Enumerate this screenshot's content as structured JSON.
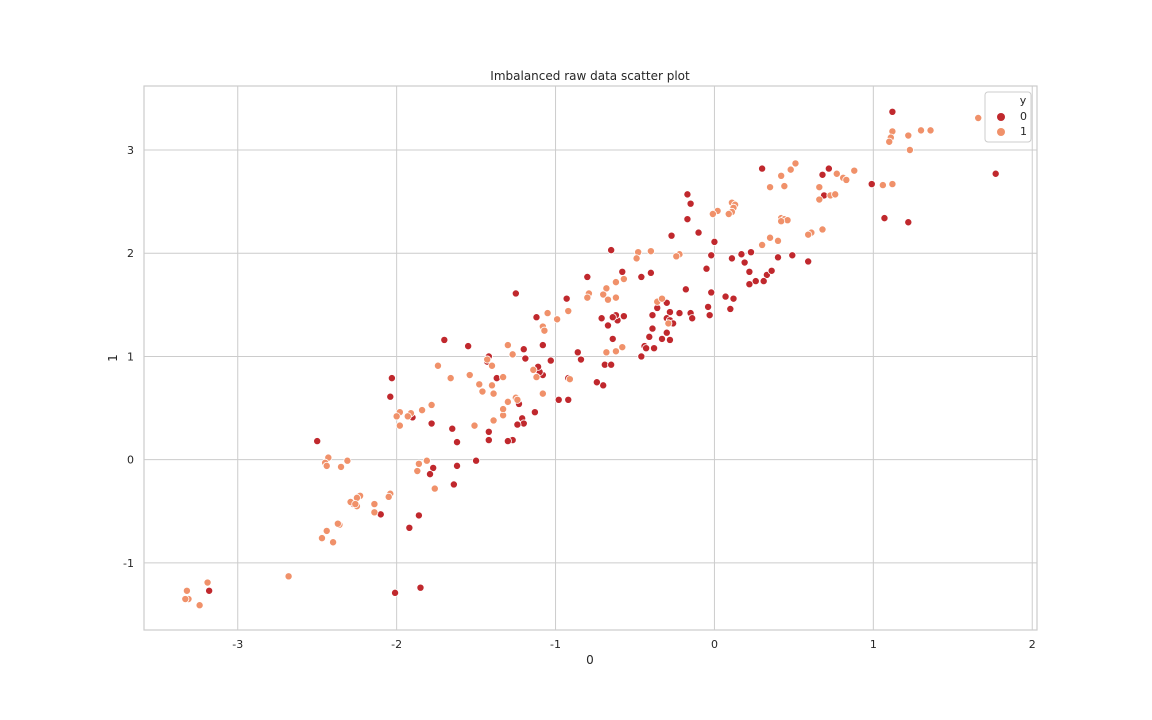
{
  "chart_data": {
    "type": "scatter",
    "title": "Imbalanced raw data scatter plot",
    "xlabel": "0",
    "ylabel": "1",
    "xlim": [
      -3.59,
      2.03
    ],
    "ylim": [
      -1.65,
      3.62
    ],
    "xticks": [
      -3,
      -2,
      -1,
      0,
      1,
      2
    ],
    "yticks": [
      -1,
      0,
      1,
      2,
      3
    ],
    "grid": true,
    "legend": {
      "title": "y",
      "position": "upper right",
      "entries": [
        "0",
        "1"
      ]
    },
    "colors": {
      "0": "#c0282d",
      "1": "#f0916a"
    },
    "series": [
      {
        "name": "0",
        "points": [
          [
            1.12,
            3.37
          ],
          [
            1.77,
            2.77
          ],
          [
            0.3,
            2.82
          ],
          [
            0.72,
            2.82
          ],
          [
            0.68,
            2.76
          ],
          [
            0.69,
            2.56
          ],
          [
            1.07,
            2.34
          ],
          [
            1.22,
            2.3
          ],
          [
            0.99,
            2.67
          ],
          [
            -0.17,
            2.57
          ],
          [
            -0.15,
            2.48
          ],
          [
            -0.17,
            2.33
          ],
          [
            -0.27,
            2.17
          ],
          [
            -0.1,
            2.2
          ],
          [
            0.0,
            2.11
          ],
          [
            -0.02,
            1.98
          ],
          [
            -0.05,
            1.85
          ],
          [
            0.17,
            1.99
          ],
          [
            0.23,
            2.01
          ],
          [
            0.19,
            1.91
          ],
          [
            0.11,
            1.95
          ],
          [
            0.22,
            1.82
          ],
          [
            0.33,
            1.79
          ],
          [
            0.36,
            1.83
          ],
          [
            0.4,
            1.96
          ],
          [
            0.49,
            1.98
          ],
          [
            0.59,
            1.92
          ],
          [
            0.22,
            1.7
          ],
          [
            0.26,
            1.73
          ],
          [
            0.31,
            1.73
          ],
          [
            0.07,
            1.58
          ],
          [
            0.12,
            1.56
          ],
          [
            -0.02,
            1.62
          ],
          [
            0.1,
            1.46
          ],
          [
            -0.04,
            1.48
          ],
          [
            -0.03,
            1.4
          ],
          [
            -0.18,
            1.65
          ],
          [
            -0.28,
            1.43
          ],
          [
            -0.22,
            1.42
          ],
          [
            -0.15,
            1.42
          ],
          [
            -0.14,
            1.37
          ],
          [
            -0.3,
            1.52
          ],
          [
            -0.3,
            1.37
          ],
          [
            -0.36,
            1.47
          ],
          [
            -0.39,
            1.4
          ],
          [
            -0.28,
            1.35
          ],
          [
            -0.26,
            1.32
          ],
          [
            -0.3,
            1.23
          ],
          [
            -0.33,
            1.17
          ],
          [
            -0.28,
            1.16
          ],
          [
            -0.39,
            1.27
          ],
          [
            -0.41,
            1.19
          ],
          [
            -0.44,
            1.1
          ],
          [
            -0.38,
            1.08
          ],
          [
            -0.46,
            1.0
          ],
          [
            -0.4,
            1.81
          ],
          [
            -0.58,
            1.82
          ],
          [
            -0.46,
            1.77
          ],
          [
            -0.65,
            2.03
          ],
          [
            -0.57,
            1.39
          ],
          [
            -0.61,
            1.35
          ],
          [
            -0.62,
            1.4
          ],
          [
            -0.64,
            1.38
          ],
          [
            -0.71,
            1.37
          ],
          [
            -0.67,
            1.3
          ],
          [
            -0.64,
            1.17
          ],
          [
            -0.69,
            0.92
          ],
          [
            -0.65,
            0.92
          ],
          [
            -0.7,
            0.72
          ],
          [
            -0.74,
            0.75
          ],
          [
            -0.84,
            0.97
          ],
          [
            -0.86,
            1.04
          ],
          [
            -0.8,
            1.77
          ],
          [
            -0.93,
            1.56
          ],
          [
            -0.92,
            0.58
          ],
          [
            -0.98,
            0.58
          ],
          [
            -0.92,
            0.79
          ],
          [
            -1.03,
            0.96
          ],
          [
            -1.08,
            0.82
          ],
          [
            -1.1,
            0.85
          ],
          [
            -1.11,
            0.9
          ],
          [
            -1.08,
            1.11
          ],
          [
            -1.12,
            1.38
          ],
          [
            -1.19,
            0.98
          ],
          [
            -1.25,
            1.61
          ],
          [
            -1.2,
            1.07
          ],
          [
            -1.13,
            0.46
          ],
          [
            -1.21,
            0.4
          ],
          [
            -1.2,
            0.35
          ],
          [
            -1.23,
            0.54
          ],
          [
            -1.24,
            0.34
          ],
          [
            -1.27,
            0.19
          ],
          [
            -1.3,
            0.18
          ],
          [
            -1.43,
            0.95
          ],
          [
            -1.42,
            1.0
          ],
          [
            -1.37,
            0.79
          ],
          [
            -1.42,
            0.27
          ],
          [
            -1.42,
            0.19
          ],
          [
            -1.55,
            1.1
          ],
          [
            -1.5,
            -0.01
          ],
          [
            -1.62,
            0.17
          ],
          [
            -1.62,
            -0.06
          ],
          [
            -1.64,
            -0.24
          ],
          [
            -1.65,
            0.3
          ],
          [
            -1.7,
            1.16
          ],
          [
            -1.78,
            0.35
          ],
          [
            -1.77,
            -0.08
          ],
          [
            -1.79,
            -0.14
          ],
          [
            -1.86,
            -0.54
          ],
          [
            -1.92,
            -0.66
          ],
          [
            -1.9,
            0.41
          ],
          [
            -2.03,
            0.79
          ],
          [
            -2.04,
            0.61
          ],
          [
            -2.1,
            -0.53
          ],
          [
            -2.27,
            -0.43
          ],
          [
            -2.5,
            0.18
          ],
          [
            -1.85,
            -1.24
          ],
          [
            -2.01,
            -1.29
          ],
          [
            -3.18,
            -1.27
          ],
          [
            -0.43,
            1.08
          ]
        ]
      },
      {
        "name": "1",
        "points": [
          [
            1.66,
            3.31
          ],
          [
            1.12,
            3.18
          ],
          [
            1.36,
            3.19
          ],
          [
            1.3,
            3.19
          ],
          [
            1.22,
            3.14
          ],
          [
            1.11,
            3.12
          ],
          [
            1.1,
            3.08
          ],
          [
            1.23,
            3.0
          ],
          [
            1.06,
            2.66
          ],
          [
            1.12,
            2.67
          ],
          [
            0.88,
            2.8
          ],
          [
            0.81,
            2.73
          ],
          [
            0.83,
            2.71
          ],
          [
            0.77,
            2.77
          ],
          [
            0.73,
            2.56
          ],
          [
            0.76,
            2.57
          ],
          [
            0.66,
            2.64
          ],
          [
            0.66,
            2.52
          ],
          [
            0.51,
            2.87
          ],
          [
            0.48,
            2.81
          ],
          [
            0.42,
            2.75
          ],
          [
            0.44,
            2.65
          ],
          [
            0.35,
            2.64
          ],
          [
            0.42,
            2.34
          ],
          [
            0.44,
            2.33
          ],
          [
            0.46,
            2.32
          ],
          [
            0.42,
            2.31
          ],
          [
            0.68,
            2.23
          ],
          [
            0.61,
            2.2
          ],
          [
            0.59,
            2.18
          ],
          [
            0.35,
            2.15
          ],
          [
            0.4,
            2.12
          ],
          [
            0.3,
            2.08
          ],
          [
            0.11,
            2.49
          ],
          [
            0.13,
            2.47
          ],
          [
            0.12,
            2.44
          ],
          [
            0.11,
            2.4
          ],
          [
            0.09,
            2.38
          ],
          [
            0.02,
            2.41
          ],
          [
            -0.01,
            2.38
          ],
          [
            -0.22,
            1.99
          ],
          [
            -0.24,
            1.97
          ],
          [
            -0.4,
            2.02
          ],
          [
            -0.48,
            2.01
          ],
          [
            -0.49,
            1.95
          ],
          [
            -0.57,
            1.75
          ],
          [
            -0.62,
            1.72
          ],
          [
            -0.68,
            1.66
          ],
          [
            -0.7,
            1.6
          ],
          [
            -0.79,
            1.61
          ],
          [
            -0.8,
            1.57
          ],
          [
            -0.62,
            1.57
          ],
          [
            -0.92,
            1.44
          ],
          [
            -0.99,
            1.36
          ],
          [
            -1.05,
            1.42
          ],
          [
            -1.08,
            1.29
          ],
          [
            -1.07,
            1.25
          ],
          [
            -1.27,
            1.02
          ],
          [
            -1.3,
            1.11
          ],
          [
            -1.43,
            0.97
          ],
          [
            -1.4,
            0.91
          ],
          [
            -1.14,
            0.87
          ],
          [
            -1.12,
            0.8
          ],
          [
            -1.33,
            0.8
          ],
          [
            -1.4,
            0.72
          ],
          [
            -1.48,
            0.73
          ],
          [
            -1.46,
            0.66
          ],
          [
            -1.39,
            0.64
          ],
          [
            -1.54,
            0.82
          ],
          [
            -1.66,
            0.79
          ],
          [
            -1.74,
            0.91
          ],
          [
            -0.68,
            1.04
          ],
          [
            -0.62,
            1.05
          ],
          [
            -0.58,
            1.09
          ],
          [
            -0.67,
            1.55
          ],
          [
            -0.36,
            1.53
          ],
          [
            -0.33,
            1.56
          ],
          [
            -0.29,
            1.32
          ],
          [
            -0.91,
            0.78
          ],
          [
            -1.08,
            0.64
          ],
          [
            -1.25,
            0.6
          ],
          [
            -1.24,
            0.58
          ],
          [
            -1.3,
            0.56
          ],
          [
            -1.33,
            0.43
          ],
          [
            -1.33,
            0.49
          ],
          [
            -1.39,
            0.38
          ],
          [
            -1.51,
            0.33
          ],
          [
            -1.78,
            0.53
          ],
          [
            -1.84,
            0.48
          ],
          [
            -1.91,
            0.45
          ],
          [
            -1.93,
            0.42
          ],
          [
            -1.98,
            0.46
          ],
          [
            -2.0,
            0.42
          ],
          [
            -1.98,
            0.33
          ],
          [
            -1.86,
            -0.04
          ],
          [
            -1.87,
            -0.11
          ],
          [
            -1.81,
            -0.01
          ],
          [
            -1.76,
            -0.28
          ],
          [
            -2.04,
            -0.33
          ],
          [
            -2.05,
            -0.36
          ],
          [
            -2.14,
            -0.43
          ],
          [
            -2.14,
            -0.51
          ],
          [
            -2.23,
            -0.35
          ],
          [
            -2.25,
            -0.37
          ],
          [
            -2.25,
            -0.45
          ],
          [
            -2.29,
            -0.41
          ],
          [
            -2.26,
            -0.43
          ],
          [
            -2.31,
            -0.01
          ],
          [
            -2.35,
            -0.07
          ],
          [
            -2.36,
            -0.63
          ],
          [
            -2.37,
            -0.62
          ],
          [
            -2.4,
            -0.8
          ],
          [
            -2.44,
            -0.69
          ],
          [
            -2.47,
            -0.76
          ],
          [
            -2.43,
            0.02
          ],
          [
            -2.45,
            -0.03
          ],
          [
            -2.44,
            -0.06
          ],
          [
            -2.68,
            -1.13
          ],
          [
            -3.19,
            -1.19
          ],
          [
            -3.32,
            -1.27
          ],
          [
            -3.31,
            -1.35
          ],
          [
            -3.33,
            -1.35
          ],
          [
            -3.24,
            -1.41
          ]
        ]
      }
    ]
  }
}
